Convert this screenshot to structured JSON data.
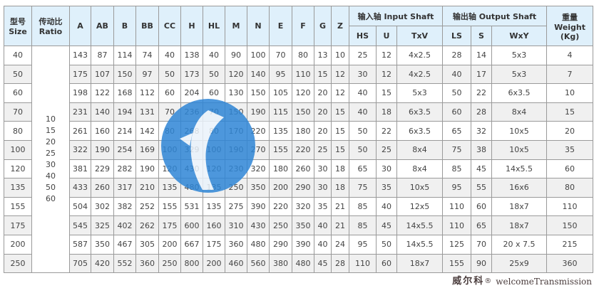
{
  "header": {
    "size": [
      "型号",
      "Size"
    ],
    "ratio": [
      "传动比",
      "Ratio"
    ],
    "dims": [
      "A",
      "AB",
      "B",
      "BB",
      "CC",
      "H",
      "HL",
      "M",
      "N",
      "E",
      "F",
      "G",
      "Z"
    ],
    "input_group": "输入轴 Input Shaft",
    "input_cols": [
      "HS",
      "U",
      "TxV"
    ],
    "output_group": "输出轴 Output Shaft",
    "output_cols": [
      "LS",
      "S",
      "WxY"
    ],
    "weight": [
      "重量",
      "Weight",
      "(Kg)"
    ]
  },
  "ratios": [
    "10",
    "15",
    "20",
    "25",
    "30",
    "40",
    "50",
    "60"
  ],
  "rows": [
    [
      "40",
      "143",
      "87",
      "114",
      "74",
      "40",
      "138",
      "40",
      "90",
      "100",
      "70",
      "80",
      "13",
      "10",
      "25",
      "12",
      "4x2.5",
      "28",
      "14",
      "5x3",
      "4"
    ],
    [
      "50",
      "175",
      "107",
      "150",
      "97",
      "50",
      "173",
      "50",
      "120",
      "140",
      "95",
      "110",
      "15",
      "12",
      "30",
      "12",
      "4x2.5",
      "40",
      "17",
      "5x3",
      "7"
    ],
    [
      "60",
      "198",
      "122",
      "168",
      "112",
      "60",
      "204",
      "60",
      "130",
      "150",
      "105",
      "120",
      "20",
      "12",
      "40",
      "15",
      "5x3",
      "50",
      "22",
      "6x3.5",
      "10"
    ],
    [
      "70",
      "231",
      "140",
      "194",
      "131",
      "70",
      "236",
      "70",
      "150",
      "190",
      "115",
      "150",
      "20",
      "15",
      "40",
      "18",
      "6x3.5",
      "60",
      "28",
      "8x4",
      "15"
    ],
    [
      "80",
      "261",
      "160",
      "214",
      "142",
      "80",
      "268",
      "80",
      "170",
      "220",
      "135",
      "180",
      "20",
      "15",
      "50",
      "22",
      "6x3.5",
      "65",
      "32",
      "10x5",
      "20"
    ],
    [
      "100",
      "322",
      "190",
      "254",
      "169",
      "100",
      "329",
      "100",
      "190",
      "270",
      "155",
      "220",
      "25",
      "15",
      "50",
      "25",
      "8x4",
      "75",
      "38",
      "10x5",
      "35"
    ],
    [
      "120",
      "381",
      "229",
      "282",
      "190",
      "120",
      "430",
      "120",
      "230",
      "320",
      "180",
      "260",
      "30",
      "18",
      "65",
      "30",
      "8x4",
      "85",
      "45",
      "14x5.5",
      "60"
    ],
    [
      "135",
      "433",
      "260",
      "317",
      "210",
      "135",
      "480",
      "135",
      "250",
      "350",
      "200",
      "290",
      "30",
      "18",
      "75",
      "35",
      "10x5",
      "95",
      "55",
      "16x6",
      "80"
    ],
    [
      "155",
      "504",
      "302",
      "382",
      "252",
      "155",
      "531",
      "135",
      "275",
      "390",
      "220",
      "320",
      "35",
      "21",
      "85",
      "40",
      "12x5",
      "110",
      "60",
      "18x7",
      "110"
    ],
    [
      "175",
      "545",
      "325",
      "402",
      "262",
      "175",
      "600",
      "160",
      "310",
      "430",
      "250",
      "350",
      "40",
      "21",
      "85",
      "45",
      "14x5.5",
      "110",
      "65",
      "18x7",
      "150"
    ],
    [
      "200",
      "587",
      "350",
      "467",
      "305",
      "200",
      "667",
      "175",
      "360",
      "480",
      "290",
      "390",
      "40",
      "24",
      "95",
      "50",
      "14x5.5",
      "125",
      "70",
      "20 x 7.5",
      "215"
    ],
    [
      "250",
      "705",
      "420",
      "552",
      "360",
      "250",
      "800",
      "200",
      "460",
      "560",
      "380",
      "480",
      "45",
      "28",
      "110",
      "60",
      "18x7",
      "155",
      "90",
      "25x9",
      "360"
    ]
  ],
  "watermark": {
    "cn": "威尔科",
    "reg": "®",
    "en": "welcomeTransmission",
    "color": "#2f86d6"
  },
  "colors": {
    "header_bg": "#dff0fb",
    "alt_row": "#f0f0f0",
    "border": "#9a9a9a"
  }
}
